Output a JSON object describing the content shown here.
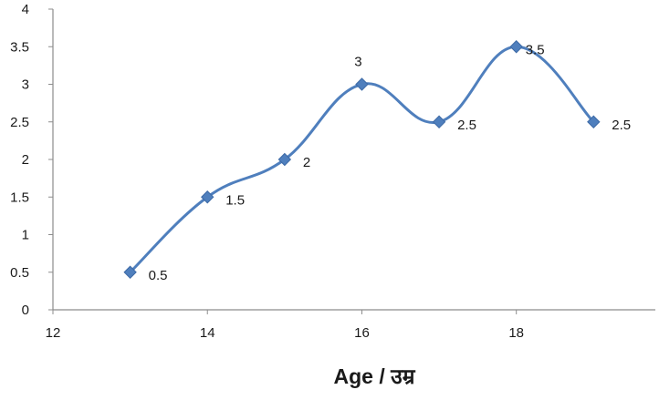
{
  "chart_data": {
    "type": "line",
    "smooth": true,
    "title": "",
    "xlabel": "Age / उम्र",
    "ylabel": "",
    "xlim": [
      12,
      19.8
    ],
    "ylim": [
      0,
      4
    ],
    "x_ticks": [
      12,
      14,
      16,
      18
    ],
    "y_ticks": [
      0,
      0.5,
      1,
      1.5,
      2,
      2.5,
      3,
      3.5,
      4
    ],
    "x_tick_labels": [
      "12",
      "14",
      "16",
      "18"
    ],
    "y_tick_labels": [
      "0",
      "0.5",
      "1",
      "1.5",
      "2",
      "2.5",
      "3",
      "3.5",
      "4"
    ],
    "grid": false,
    "legend": "none",
    "marker": "diamond",
    "line_color": "#4f7fbd",
    "series": [
      {
        "x": [
          13,
          14,
          15,
          16,
          17,
          18,
          19
        ],
        "values": [
          0.5,
          1.5,
          2,
          3,
          2.5,
          3.5,
          2.5
        ],
        "labels": [
          "0.5",
          "1.5",
          "2",
          "3",
          "2.5",
          "3.5",
          "2.5"
        ]
      }
    ]
  }
}
